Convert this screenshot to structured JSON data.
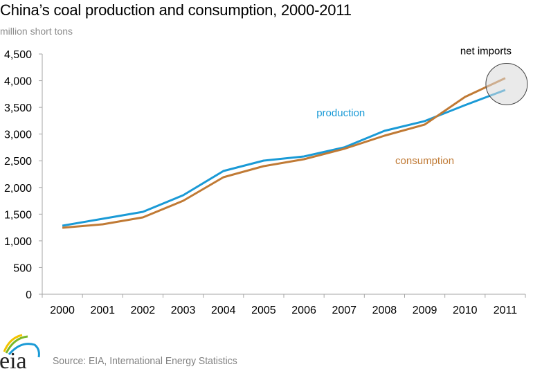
{
  "chart_data": {
    "type": "line",
    "title": "China’s coal production and consumption, 2000-2011",
    "ylabel": "million short tons",
    "xlabel": "",
    "x": [
      "2000",
      "2001",
      "2002",
      "2003",
      "2004",
      "2005",
      "2006",
      "2007",
      "2008",
      "2009",
      "2010",
      "2011"
    ],
    "ylim": [
      0,
      4500
    ],
    "yticks": [
      0,
      500,
      1000,
      1500,
      2000,
      2500,
      3000,
      3500,
      4000,
      4500
    ],
    "ytick_labels": [
      "0",
      "500",
      "1,000",
      "1,500",
      "2,000",
      "2,500",
      "3,000",
      "3,500",
      "4,000",
      "4,500"
    ],
    "grid": false,
    "series": [
      {
        "name": "production",
        "color": "#1a9ad6",
        "values": [
          1284,
          1414,
          1543,
          1855,
          2308,
          2503,
          2581,
          2750,
          3061,
          3243,
          3541,
          3826
        ]
      },
      {
        "name": "consumption",
        "color": "#c07a35",
        "values": [
          1245,
          1310,
          1440,
          1751,
          2192,
          2399,
          2529,
          2724,
          2970,
          3178,
          3696,
          4047
        ]
      }
    ],
    "annotations": [
      {
        "text": "production",
        "color": "#1a9ad6",
        "anchor": "production series near 2006-2007"
      },
      {
        "text": "consumption",
        "color": "#c07a35",
        "anchor": "consumption series near 2009-2010"
      },
      {
        "text": "net imports",
        "color": "#000000",
        "anchor": "circle around 2011 gap between series"
      }
    ]
  },
  "source": "Source: EIA, International Energy Statistics",
  "logo": {
    "text": "eia",
    "arc_colors": [
      "#f2c300",
      "#7ab829",
      "#1a9ad6"
    ]
  }
}
